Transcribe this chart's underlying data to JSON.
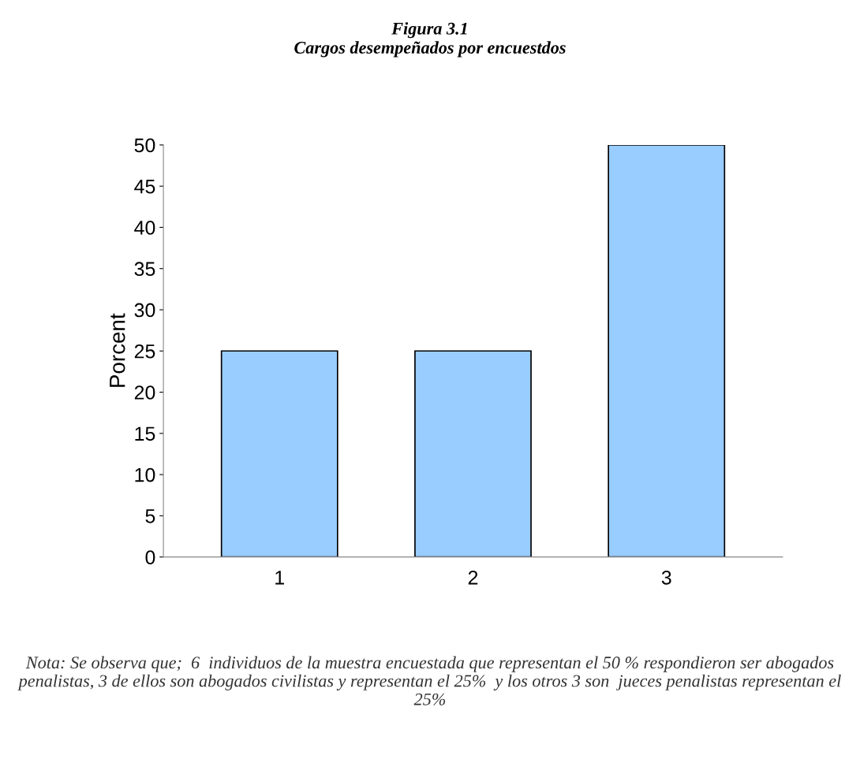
{
  "chart_data": {
    "type": "bar",
    "title": "Figura 3.1",
    "subtitle": "Cargos desempeñados por encuestdos",
    "ylabel": "Porcent",
    "categories": [
      "1",
      "2",
      "3"
    ],
    "values": [
      25,
      25,
      50
    ],
    "color": "#99ccff",
    "ylim": [
      0,
      50
    ],
    "yticks": [
      0,
      5,
      10,
      15,
      20,
      25,
      30,
      35,
      40,
      45,
      50
    ],
    "grid": false,
    "legend": false,
    "annotations": [
      "Nota: Se observa que;  6  individuos de la muestra encuestada que representan el 50 % respondieron ser abogados penalistas, 3 de ellos son abogados civilistas y representan el 25%  y los otros 3 son  jueces penalistas representan el 25%"
    ]
  }
}
